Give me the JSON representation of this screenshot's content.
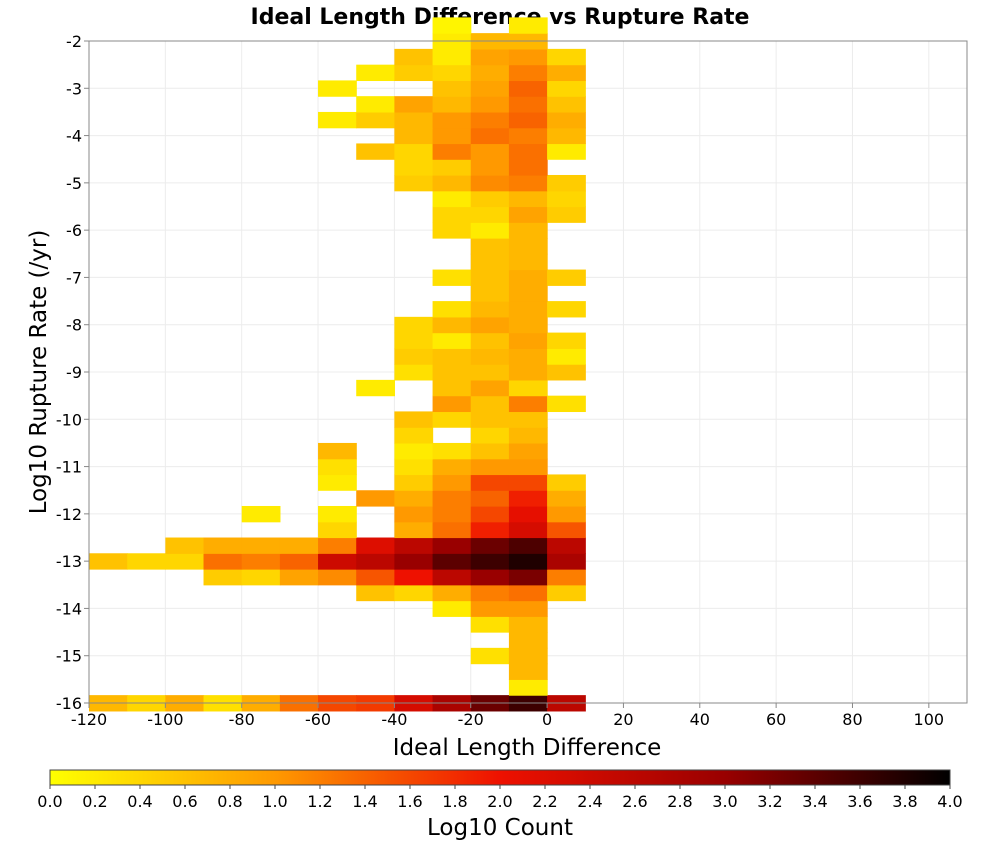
{
  "chart_data": {
    "type": "heatmap",
    "title": "Ideal Length Difference vs Rupture Rate",
    "xlabel": "Ideal Length Difference",
    "ylabel": "Log10 Rupture Rate (/yr)",
    "colorbar_label": "Log10 Count",
    "xlim": [
      -120,
      110
    ],
    "ylim": [
      -16,
      -2
    ],
    "x_ticks": [
      -120,
      -100,
      -80,
      -60,
      -40,
      -20,
      0,
      20,
      40,
      60,
      80,
      100
    ],
    "y_ticks": [
      -2,
      -3,
      -4,
      -5,
      -6,
      -7,
      -8,
      -9,
      -10,
      -11,
      -12,
      -13,
      -14,
      -15,
      -16
    ],
    "colorbar_range": [
      0,
      4
    ],
    "colorbar_ticks": [
      "0.0",
      "0.2",
      "0.4",
      "0.6",
      "0.8",
      "1.0",
      "1.2",
      "1.4",
      "1.6",
      "1.8",
      "2.0",
      "2.2",
      "2.4",
      "2.6",
      "2.8",
      "3.0",
      "3.2",
      "3.4",
      "3.6",
      "3.8",
      "4.0"
    ],
    "colormap": [
      "#ffff00",
      "#ff9900",
      "#ee1100",
      "#990000",
      "#000000"
    ],
    "grid": true,
    "bin_width_x": 10,
    "bin_height_y": 0.333,
    "x_bins": [
      -120,
      -110,
      -100,
      -90,
      -80,
      -70,
      -60,
      -50,
      -40,
      -30,
      -20,
      -10,
      0
    ],
    "cells": [
      [
        -120,
        -16.0,
        0.7
      ],
      [
        -110,
        -16.0,
        0.4
      ],
      [
        -100,
        -16.0,
        0.8
      ],
      [
        -90,
        -16.0,
        0.3
      ],
      [
        -80,
        -16.0,
        0.8
      ],
      [
        -70,
        -16.0,
        1.3
      ],
      [
        -60,
        -16.0,
        1.6
      ],
      [
        -50,
        -16.0,
        1.7
      ],
      [
        -40,
        -16.0,
        2.3
      ],
      [
        -30,
        -16.0,
        2.8
      ],
      [
        -20,
        -16.0,
        3.3
      ],
      [
        -10,
        -16.0,
        3.6
      ],
      [
        0,
        -16.0,
        2.6
      ],
      [
        -10,
        -15.667,
        0.2
      ],
      [
        -10,
        -15.333,
        0.7
      ],
      [
        -20,
        -15.0,
        0.3
      ],
      [
        -10,
        -15.0,
        0.7
      ],
      [
        -10,
        -14.667,
        0.7
      ],
      [
        -20,
        -14.333,
        0.3
      ],
      [
        -10,
        -14.333,
        0.7
      ],
      [
        -30,
        -14.0,
        0.2
      ],
      [
        -20,
        -14.0,
        1.0
      ],
      [
        -10,
        -14.0,
        1.0
      ],
      [
        -50,
        -13.667,
        0.6
      ],
      [
        -40,
        -13.667,
        0.4
      ],
      [
        -30,
        -13.667,
        0.8
      ],
      [
        -20,
        -13.667,
        1.2
      ],
      [
        -10,
        -13.667,
        1.3
      ],
      [
        0,
        -13.667,
        0.5
      ],
      [
        -90,
        -13.333,
        0.5
      ],
      [
        -80,
        -13.333,
        0.4
      ],
      [
        -70,
        -13.333,
        0.9
      ],
      [
        -60,
        -13.333,
        1.1
      ],
      [
        -50,
        -13.333,
        1.5
      ],
      [
        -40,
        -13.333,
        2.0
      ],
      [
        -30,
        -13.333,
        2.6
      ],
      [
        -20,
        -13.333,
        3.0
      ],
      [
        -10,
        -13.333,
        3.2
      ],
      [
        0,
        -13.333,
        1.2
      ],
      [
        -120,
        -13.0,
        0.6
      ],
      [
        -110,
        -13.0,
        0.4
      ],
      [
        -100,
        -13.0,
        0.4
      ],
      [
        -90,
        -13.0,
        1.3
      ],
      [
        -80,
        -13.0,
        1.2
      ],
      [
        -70,
        -13.0,
        1.4
      ],
      [
        -60,
        -13.0,
        2.4
      ],
      [
        -50,
        -13.0,
        2.6
      ],
      [
        -40,
        -13.0,
        3.0
      ],
      [
        -30,
        -13.0,
        3.4
      ],
      [
        -20,
        -13.0,
        3.6
      ],
      [
        -10,
        -13.0,
        3.8
      ],
      [
        0,
        -13.0,
        2.8
      ],
      [
        -100,
        -12.667,
        0.6
      ],
      [
        -90,
        -12.667,
        0.8
      ],
      [
        -80,
        -12.667,
        0.8
      ],
      [
        -70,
        -12.667,
        0.8
      ],
      [
        -60,
        -12.667,
        1.2
      ],
      [
        -50,
        -12.667,
        2.2
      ],
      [
        -40,
        -12.667,
        2.6
      ],
      [
        -30,
        -12.667,
        3.0
      ],
      [
        -20,
        -12.667,
        3.3
      ],
      [
        -10,
        -12.667,
        3.5
      ],
      [
        0,
        -12.667,
        2.6
      ],
      [
        -60,
        -12.333,
        0.4
      ],
      [
        -40,
        -12.333,
        0.8
      ],
      [
        -30,
        -12.333,
        1.3
      ],
      [
        -20,
        -12.333,
        1.9
      ],
      [
        -10,
        -12.333,
        2.3
      ],
      [
        0,
        -12.333,
        1.5
      ],
      [
        -80,
        -12.0,
        0.2
      ],
      [
        -60,
        -12.0,
        0.2
      ],
      [
        -40,
        -12.0,
        1.0
      ],
      [
        -30,
        -12.0,
        1.2
      ],
      [
        -20,
        -12.0,
        1.6
      ],
      [
        -10,
        -12.0,
        2.1
      ],
      [
        0,
        -12.0,
        1.0
      ],
      [
        -50,
        -11.667,
        1.0
      ],
      [
        -40,
        -11.667,
        0.8
      ],
      [
        -30,
        -11.667,
        1.2
      ],
      [
        -20,
        -11.667,
        1.4
      ],
      [
        -10,
        -11.667,
        1.9
      ],
      [
        0,
        -11.667,
        0.8
      ],
      [
        -60,
        -11.333,
        0.2
      ],
      [
        -40,
        -11.333,
        0.5
      ],
      [
        -30,
        -11.333,
        1.0
      ],
      [
        -20,
        -11.333,
        1.6
      ],
      [
        -10,
        -11.333,
        1.6
      ],
      [
        0,
        -11.333,
        0.5
      ],
      [
        -60,
        -11.0,
        0.3
      ],
      [
        -40,
        -11.0,
        0.3
      ],
      [
        -30,
        -11.0,
        0.8
      ],
      [
        -20,
        -11.0,
        1.0
      ],
      [
        -10,
        -11.0,
        1.0
      ],
      [
        -60,
        -10.667,
        0.7
      ],
      [
        -40,
        -10.667,
        0.2
      ],
      [
        -30,
        -10.667,
        0.3
      ],
      [
        -20,
        -10.667,
        0.6
      ],
      [
        -10,
        -10.667,
        0.9
      ],
      [
        -40,
        -10.333,
        0.4
      ],
      [
        -20,
        -10.333,
        0.4
      ],
      [
        -10,
        -10.333,
        0.7
      ],
      [
        -40,
        -10.0,
        0.6
      ],
      [
        -30,
        -10.0,
        0.4
      ],
      [
        -20,
        -10.0,
        0.6
      ],
      [
        -10,
        -10.0,
        0.6
      ],
      [
        -30,
        -9.667,
        1.0
      ],
      [
        -20,
        -9.667,
        0.6
      ],
      [
        -10,
        -9.667,
        1.2
      ],
      [
        0,
        -9.667,
        0.3
      ],
      [
        -50,
        -9.333,
        0.2
      ],
      [
        -30,
        -9.333,
        0.6
      ],
      [
        -20,
        -9.333,
        0.9
      ],
      [
        -10,
        -9.333,
        0.4
      ],
      [
        -40,
        -9.0,
        0.3
      ],
      [
        -30,
        -9.0,
        0.6
      ],
      [
        -20,
        -9.0,
        0.6
      ],
      [
        -10,
        -9.0,
        0.8
      ],
      [
        0,
        -9.0,
        0.6
      ],
      [
        -40,
        -8.667,
        0.5
      ],
      [
        -30,
        -8.667,
        0.6
      ],
      [
        -20,
        -8.667,
        0.7
      ],
      [
        -10,
        -8.667,
        0.8
      ],
      [
        0,
        -8.667,
        0.2
      ],
      [
        -40,
        -8.333,
        0.4
      ],
      [
        -30,
        -8.333,
        0.2
      ],
      [
        -20,
        -8.333,
        0.6
      ],
      [
        -10,
        -8.333,
        0.9
      ],
      [
        0,
        -8.333,
        0.4
      ],
      [
        -40,
        -8.0,
        0.4
      ],
      [
        -30,
        -8.0,
        0.7
      ],
      [
        -20,
        -8.0,
        0.9
      ],
      [
        -10,
        -8.0,
        0.8
      ],
      [
        -30,
        -7.667,
        0.3
      ],
      [
        -20,
        -7.667,
        0.7
      ],
      [
        -10,
        -7.667,
        0.8
      ],
      [
        0,
        -7.667,
        0.4
      ],
      [
        -20,
        -7.333,
        0.6
      ],
      [
        -10,
        -7.333,
        0.8
      ],
      [
        -30,
        -7.0,
        0.3
      ],
      [
        -20,
        -7.0,
        0.6
      ],
      [
        -10,
        -7.0,
        0.8
      ],
      [
        0,
        -7.0,
        0.5
      ],
      [
        -20,
        -6.667,
        0.6
      ],
      [
        -10,
        -6.667,
        0.7
      ],
      [
        -20,
        -6.333,
        0.6
      ],
      [
        -10,
        -6.333,
        0.7
      ],
      [
        -30,
        -6.0,
        0.4
      ],
      [
        -20,
        -6.0,
        0.2
      ],
      [
        -10,
        -6.0,
        0.7
      ],
      [
        -30,
        -5.667,
        0.4
      ],
      [
        -20,
        -5.667,
        0.4
      ],
      [
        -10,
        -5.667,
        0.9
      ],
      [
        0,
        -5.667,
        0.5
      ],
      [
        -30,
        -5.333,
        0.2
      ],
      [
        -20,
        -5.333,
        0.5
      ],
      [
        -10,
        -5.333,
        0.7
      ],
      [
        0,
        -5.333,
        0.4
      ],
      [
        -40,
        -5.0,
        0.5
      ],
      [
        -30,
        -5.0,
        0.7
      ],
      [
        -20,
        -5.0,
        1.1
      ],
      [
        -10,
        -5.0,
        1.2
      ],
      [
        0,
        -5.0,
        0.5
      ],
      [
        -40,
        -4.667,
        0.4
      ],
      [
        -30,
        -4.667,
        0.5
      ],
      [
        -20,
        -4.667,
        1.0
      ],
      [
        -10,
        -4.667,
        1.3
      ],
      [
        -50,
        -4.333,
        0.6
      ],
      [
        -40,
        -4.333,
        0.4
      ],
      [
        -30,
        -4.333,
        1.2
      ],
      [
        -20,
        -4.333,
        1.0
      ],
      [
        -10,
        -4.333,
        1.3
      ],
      [
        0,
        -4.333,
        0.2
      ],
      [
        -40,
        -4.0,
        0.7
      ],
      [
        -30,
        -4.0,
        1.0
      ],
      [
        -20,
        -4.0,
        1.3
      ],
      [
        -10,
        -4.0,
        1.2
      ],
      [
        0,
        -4.0,
        0.7
      ],
      [
        -60,
        -3.667,
        0.2
      ],
      [
        -50,
        -3.667,
        0.5
      ],
      [
        -40,
        -3.667,
        0.7
      ],
      [
        -30,
        -3.667,
        1.0
      ],
      [
        -20,
        -3.667,
        1.2
      ],
      [
        -10,
        -3.667,
        1.4
      ],
      [
        0,
        -3.667,
        0.8
      ],
      [
        -50,
        -3.333,
        0.2
      ],
      [
        -40,
        -3.333,
        0.9
      ],
      [
        -30,
        -3.333,
        0.7
      ],
      [
        -20,
        -3.333,
        1.0
      ],
      [
        -10,
        -3.333,
        1.3
      ],
      [
        0,
        -3.333,
        0.6
      ],
      [
        -60,
        -3.0,
        0.2
      ],
      [
        -30,
        -3.0,
        0.6
      ],
      [
        -20,
        -3.0,
        0.9
      ],
      [
        -10,
        -3.0,
        1.4
      ],
      [
        0,
        -3.0,
        0.4
      ],
      [
        -50,
        -2.667,
        0.2
      ],
      [
        -40,
        -2.667,
        0.5
      ],
      [
        -30,
        -2.667,
        0.4
      ],
      [
        -20,
        -2.667,
        0.8
      ],
      [
        -10,
        -2.667,
        1.2
      ],
      [
        0,
        -2.667,
        0.8
      ],
      [
        -40,
        -2.333,
        0.6
      ],
      [
        -30,
        -2.333,
        0.2
      ],
      [
        -20,
        -2.333,
        0.9
      ],
      [
        -10,
        -2.333,
        1.0
      ],
      [
        0,
        -2.333,
        0.4
      ],
      [
        -30,
        -2.0,
        0.2
      ],
      [
        -20,
        -2.0,
        0.7
      ],
      [
        -10,
        -2.0,
        0.7
      ],
      [
        -30,
        -1.667,
        0.1
      ],
      [
        -10,
        -1.667,
        0.2
      ]
    ]
  }
}
